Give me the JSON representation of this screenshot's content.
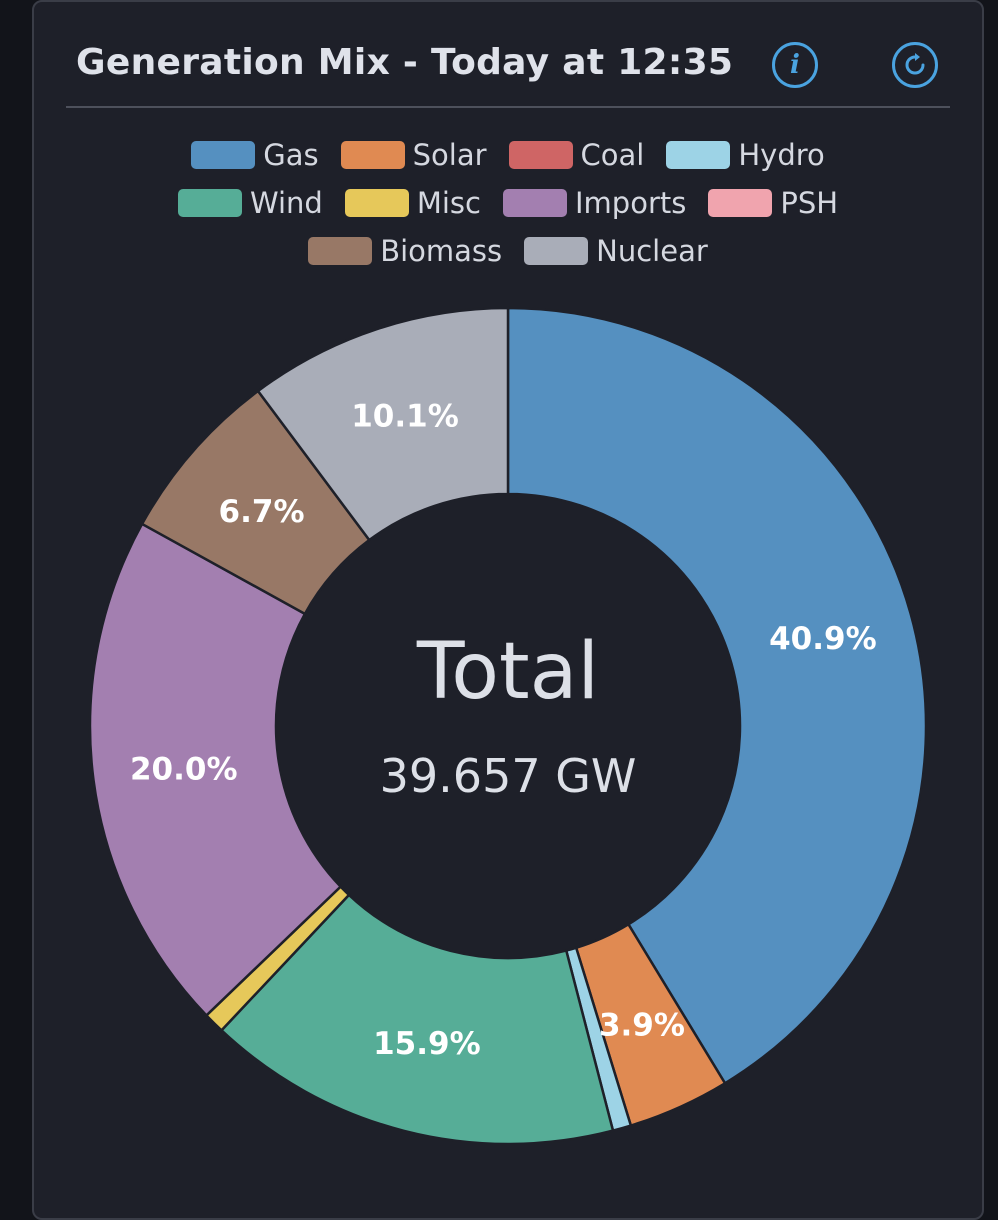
{
  "header": {
    "title": "Generation Mix - Today at 12:35",
    "info_icon": "info-icon",
    "refresh_icon": "refresh-icon"
  },
  "center": {
    "label": "Total",
    "value": "39.657 GW"
  },
  "chart_data": {
    "type": "pie",
    "variant": "donut",
    "legend_position": "top",
    "series": [
      {
        "name": "Gas",
        "value": 40.9,
        "color": "#5590c0",
        "label": "40.9%"
      },
      {
        "name": "Solar",
        "value": 3.9,
        "color": "#e08a52",
        "label": "3.9%"
      },
      {
        "name": "Coal",
        "value": 0.0,
        "color": "#cf6565",
        "label": ""
      },
      {
        "name": "Hydro",
        "value": 0.7,
        "color": "#9dd3e6",
        "label": ""
      },
      {
        "name": "Wind",
        "value": 15.9,
        "color": "#56ad97",
        "label": "15.9%"
      },
      {
        "name": "Misc",
        "value": 0.8,
        "color": "#e6c85a",
        "label": ""
      },
      {
        "name": "Imports",
        "value": 20.0,
        "color": "#a37fb0",
        "label": "20.0%"
      },
      {
        "name": "PSH",
        "value": 0.0,
        "color": "#f0a4ae",
        "label": ""
      },
      {
        "name": "Biomass",
        "value": 6.7,
        "color": "#987866",
        "label": "6.7%"
      },
      {
        "name": "Nuclear",
        "value": 10.1,
        "color": "#a9adb8",
        "label": "10.1%"
      }
    ]
  }
}
